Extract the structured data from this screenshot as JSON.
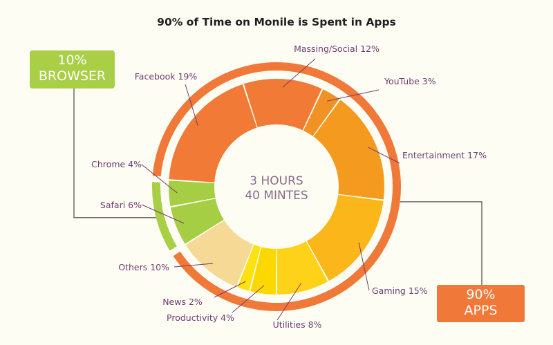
{
  "chart_data": {
    "type": "pie",
    "title": "90% of Time on Monile is Spent in Apps",
    "center_label": [
      "3 HOURS",
      "40 MINTES"
    ],
    "slices": [
      {
        "label": "Massing/Social",
        "value": 12,
        "display": "Massing/Social 12%",
        "color": "#f07a36"
      },
      {
        "label": "YouTube",
        "value": 3,
        "display": "YouTube 3%",
        "color": "#f29226"
      },
      {
        "label": "Entertainment",
        "value": 17,
        "display": "Entertainment 17%",
        "color": "#f49a1e"
      },
      {
        "label": "Gaming",
        "value": 15,
        "display": "Gaming 15%",
        "color": "#fbb619"
      },
      {
        "label": "Utilities",
        "value": 8,
        "display": "Utilities 8%",
        "color": "#ffd21a"
      },
      {
        "label": "Productivity",
        "value": 4,
        "display": "Productivity 4%",
        "color": "#fdd800"
      },
      {
        "label": "News",
        "value": 2,
        "display": "News 2%",
        "color": "#fce20e"
      },
      {
        "label": "Others",
        "value": 10,
        "display": "Others 10%",
        "color": "#f6d995"
      },
      {
        "label": "Safari",
        "value": 6,
        "display": "Safari 6%",
        "color": "#a5ce45"
      },
      {
        "label": "Chrome",
        "value": 4,
        "display": "Chrome 4%",
        "color": "#a5ce45"
      },
      {
        "label": "Facebook",
        "value": 19,
        "display": "Facebook 19%",
        "color": "#f07a36"
      }
    ],
    "groups": [
      {
        "label": "10% BROWSER",
        "line1": "10%",
        "line2": "BROWSER",
        "value": 10,
        "color": "#a8cf45"
      },
      {
        "label": "90% APPS",
        "line1": "90%",
        "line2": "APPS",
        "value": 90,
        "color": "#f07838"
      }
    ]
  },
  "colors": {
    "background": "#fdfdf3",
    "leader": "#6f3d72",
    "browser": "#a8cf45",
    "apps": "#f07838"
  }
}
